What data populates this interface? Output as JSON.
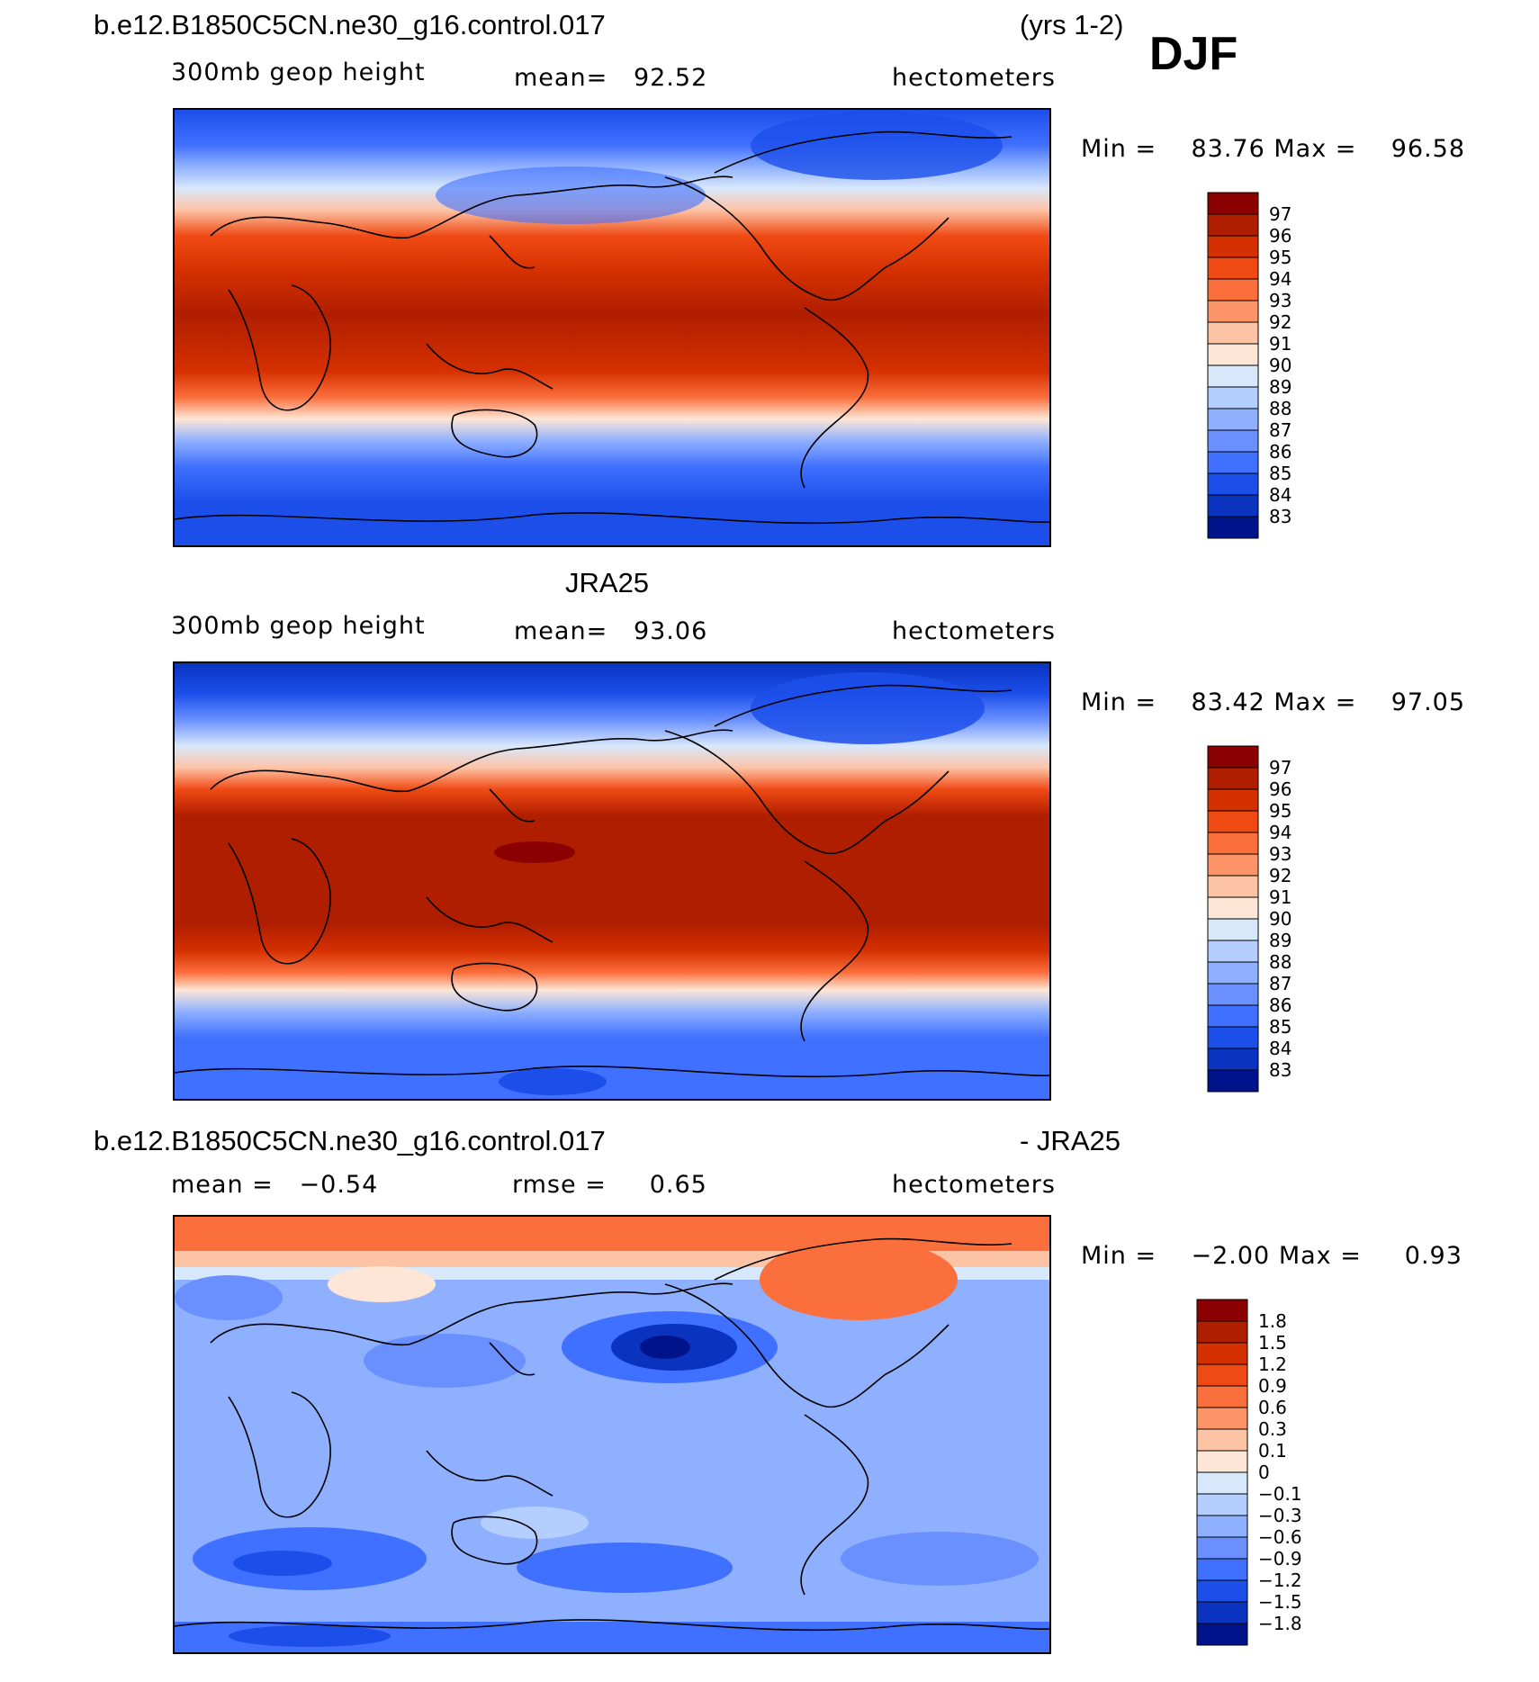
{
  "header": {
    "case_name": "b.e12.B1850C5CN.ne30_g16.control.017",
    "years": "(yrs 1-2)",
    "season": "DJF"
  },
  "panels": [
    {
      "id": "model",
      "left_label": "300mb geop height",
      "mean_label": "mean=",
      "mean_value": "92.52",
      "units": "hectometers",
      "min_label": "Min =",
      "min_value": "83.76",
      "max_label": "Max =",
      "max_value": "96.58",
      "colorbar_labels": [
        "97",
        "96",
        "95",
        "94",
        "93",
        "92",
        "91",
        "90",
        "89",
        "88",
        "87",
        "86",
        "85",
        "84",
        "83"
      ]
    },
    {
      "id": "obs",
      "title": "JRA25",
      "left_label": "300mb geop height",
      "mean_label": "mean=",
      "mean_value": "93.06",
      "units": "hectometers",
      "min_label": "Min =",
      "min_value": "83.42",
      "max_label": "Max =",
      "max_value": "97.05",
      "colorbar_labels": [
        "97",
        "96",
        "95",
        "94",
        "93",
        "92",
        "91",
        "90",
        "89",
        "88",
        "87",
        "86",
        "85",
        "84",
        "83"
      ]
    },
    {
      "id": "diff",
      "title_left": "b.e12.B1850C5CN.ne30_g16.control.017",
      "title_right": "- JRA25",
      "mean_label": "mean =",
      "mean_value": "−0.54",
      "rmse_label": "rmse =",
      "rmse_value": "0.65",
      "units": "hectometers",
      "min_label": "Min =",
      "min_value": "−2.00",
      "max_label": "Max =",
      "max_value": "0.93",
      "colorbar_labels": [
        "1.8",
        "1.5",
        "1.2",
        "0.9",
        "0.6",
        "0.3",
        "0.1",
        "0",
        "−0.1",
        "−0.3",
        "−0.6",
        "−0.9",
        "−1.2",
        "−1.5",
        "−1.8"
      ]
    }
  ],
  "colors": {
    "palette16": [
      "#8b0000",
      "#b01e00",
      "#d53000",
      "#f04a14",
      "#fb6f3c",
      "#fc9468",
      "#fdc3a5",
      "#fde6d6",
      "#d8e8fb",
      "#b3ceff",
      "#8fb0ff",
      "#6a90ff",
      "#4070ff",
      "#1c4fea",
      "#0a33c0",
      "#00138a"
    ],
    "coastline": "#000000"
  }
}
